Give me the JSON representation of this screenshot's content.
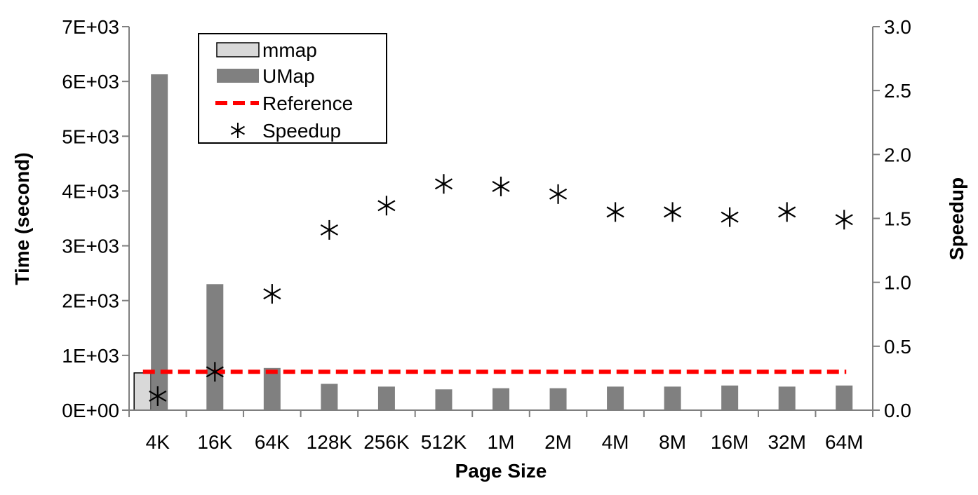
{
  "chart_data": {
    "type": "bar",
    "categories": [
      "4K",
      "16K",
      "64K",
      "128K",
      "256K",
      "512K",
      "1M",
      "2M",
      "4M",
      "8M",
      "16M",
      "32M",
      "64M"
    ],
    "series": [
      {
        "name": "mmap",
        "kind": "bar",
        "axis": "left",
        "color": "#d9d9d9",
        "values": [
          680,
          null,
          null,
          null,
          null,
          null,
          null,
          null,
          null,
          null,
          null,
          null,
          null
        ]
      },
      {
        "name": "UMap",
        "kind": "bar",
        "axis": "left",
        "color": "#808080",
        "values": [
          6130,
          2300,
          770,
          480,
          430,
          380,
          400,
          400,
          430,
          430,
          450,
          430,
          450
        ]
      },
      {
        "name": "Reference",
        "kind": "line",
        "axis": "right",
        "color": "#ff0000",
        "dashed": true,
        "values": [
          0.3,
          0.3,
          0.3,
          0.3,
          0.3,
          0.3,
          0.3,
          0.3,
          0.3,
          0.3,
          0.3,
          0.3,
          0.3
        ]
      },
      {
        "name": "Speedup",
        "kind": "scatter",
        "axis": "right",
        "color": "#000000",
        "marker": "asterisk",
        "values": [
          0.11,
          0.3,
          0.91,
          1.41,
          1.6,
          1.77,
          1.75,
          1.69,
          1.55,
          1.55,
          1.51,
          1.55,
          1.49
        ]
      }
    ],
    "xlabel": "Page Size",
    "ylabel": "Time (second)",
    "y2label": "Speedup",
    "ylim": [
      0,
      7000
    ],
    "y2lim": [
      0,
      3.0
    ],
    "yticks": [
      "0E+00",
      "1E+03",
      "2E+03",
      "3E+03",
      "4E+03",
      "5E+03",
      "6E+03",
      "7E+03"
    ],
    "y2ticks": [
      "0.0",
      "0.5",
      "1.0",
      "1.5",
      "2.0",
      "2.5",
      "3.0"
    ],
    "legend_position": "top-left",
    "grid": false
  }
}
